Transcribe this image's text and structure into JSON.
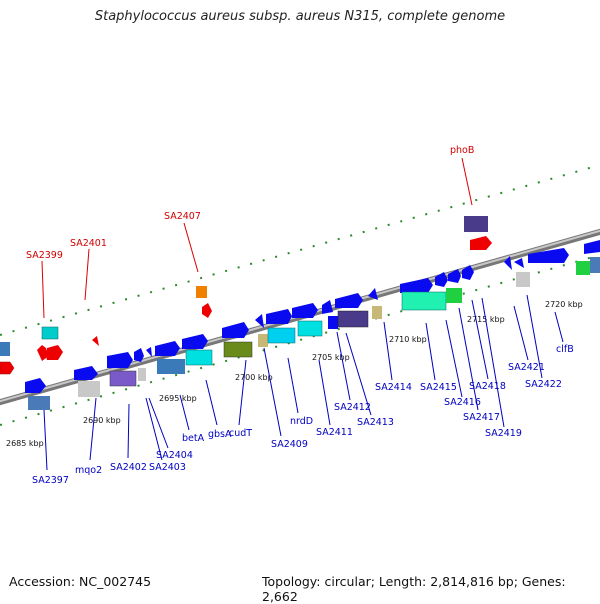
{
  "title": "Staphylococcus aureus subsp. aureus N315, complete genome",
  "footer": {
    "accession": "Accession: NC_002745",
    "summary": "Topology: circular; Length: 2,814,816 bp; Genes: 2,662"
  },
  "colors": {
    "forward_gene": "#0a0af0",
    "reverse_gene": "#ee0000",
    "label_forward": "#0000c0",
    "label_reverse": "#d00000",
    "backbone": "#8a8a8a",
    "ticks": "#2a8a2a"
  },
  "scale_labels": [
    "2685 kbp",
    "2690 kbp",
    "2695 kbp",
    "2700 kbp",
    "2705 kbp",
    "2710 kbp",
    "2715 kbp",
    "2720 kbp"
  ],
  "reverse_gene_labels": [
    "SA2399",
    "SA2401",
    "SA2407",
    "phoB"
  ],
  "forward_gene_labels": [
    "SA2397",
    "mqo2",
    "SA2402",
    "SA2404",
    "SA2403",
    "betA",
    "gbsA",
    "cudT",
    "SA2409",
    "nrdD",
    "SA2411",
    "SA2412",
    "SA2413",
    "SA2414",
    "SA2415",
    "SA2416",
    "SA2417",
    "SA2418",
    "SA2419",
    "SA2421",
    "SA2422",
    "clfB"
  ]
}
